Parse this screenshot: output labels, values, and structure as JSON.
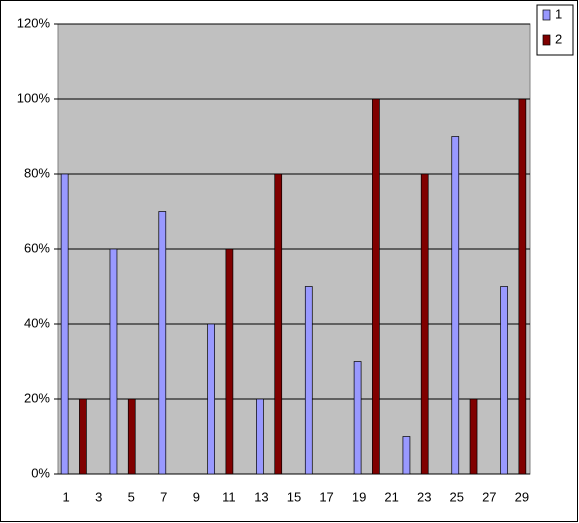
{
  "chart_data": {
    "type": "bar",
    "categories": [
      1,
      null,
      3,
      null,
      5,
      null,
      7,
      null,
      9,
      null,
      11,
      null,
      13,
      null,
      15,
      null,
      17,
      null,
      19,
      null,
      21,
      null,
      23,
      null,
      25,
      null,
      27,
      null,
      29
    ],
    "series": [
      {
        "name": "1",
        "color": "#9999ff",
        "values": [
          80,
          null,
          null,
          60,
          null,
          null,
          70,
          null,
          null,
          40,
          null,
          null,
          20,
          null,
          null,
          50,
          null,
          null,
          30,
          null,
          null,
          10,
          null,
          null,
          90,
          null,
          null,
          50,
          null
        ]
      },
      {
        "name": "2",
        "color": "#800000",
        "values": [
          null,
          20,
          null,
          null,
          20,
          null,
          null,
          null,
          null,
          null,
          60,
          null,
          null,
          80,
          null,
          null,
          null,
          null,
          null,
          100,
          null,
          null,
          80,
          null,
          null,
          20,
          null,
          null,
          100
        ]
      }
    ],
    "ylim": [
      0,
      120
    ],
    "yticks": [
      {
        "value": 0,
        "label": "0%"
      },
      {
        "value": 20,
        "label": "20%"
      },
      {
        "value": 40,
        "label": "40%"
      },
      {
        "value": 60,
        "label": "60%"
      },
      {
        "value": 80,
        "label": "80%"
      },
      {
        "value": 100,
        "label": "100%"
      },
      {
        "value": 120,
        "label": "120%"
      }
    ],
    "grid": true,
    "legend": "top-right"
  }
}
